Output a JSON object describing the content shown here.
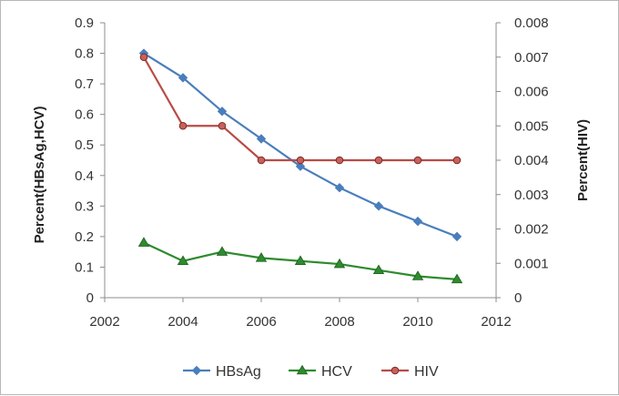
{
  "chart_data": {
    "type": "line",
    "title": "",
    "xlabel": "",
    "ylabel_left": "Percent(HBsAg,HCV)",
    "ylabel_right": "Percent(HIV)",
    "xlim": [
      2002,
      2012
    ],
    "xticks": [
      2002,
      2004,
      2006,
      2008,
      2010,
      2012
    ],
    "ylim_left": [
      0,
      0.9
    ],
    "yticks_left": [
      "0",
      "0.1",
      "0.2",
      "0.3",
      "0.4",
      "0.5",
      "0.6",
      "0.7",
      "0.8",
      "0.9"
    ],
    "ylim_right": [
      0,
      0.008
    ],
    "yticks_right": [
      "0",
      "0.001",
      "0.002",
      "0.003",
      "0.004",
      "0.005",
      "0.006",
      "0.007",
      "0.008"
    ],
    "grid": false,
    "legend_position": "bottom",
    "x": [
      2003,
      2004,
      2005,
      2006,
      2007,
      2008,
      2009,
      2010,
      2011
    ],
    "series": [
      {
        "name": "HBsAg",
        "axis": "left",
        "marker": "diamond",
        "color": "#4a7ebb",
        "values": [
          0.8,
          0.72,
          0.61,
          0.52,
          0.43,
          0.36,
          0.3,
          0.25,
          0.2
        ]
      },
      {
        "name": "HCV",
        "axis": "left",
        "marker": "triangle",
        "color": "#2e8b2e",
        "values": [
          0.18,
          0.12,
          0.15,
          0.13,
          0.12,
          0.11,
          0.09,
          0.07,
          0.06
        ]
      },
      {
        "name": "HIV",
        "axis": "right",
        "marker": "circle",
        "color": "#b94b46",
        "values": [
          0.007,
          0.005,
          0.005,
          0.004,
          0.004,
          0.004,
          0.004,
          0.004,
          0.004
        ]
      }
    ]
  }
}
